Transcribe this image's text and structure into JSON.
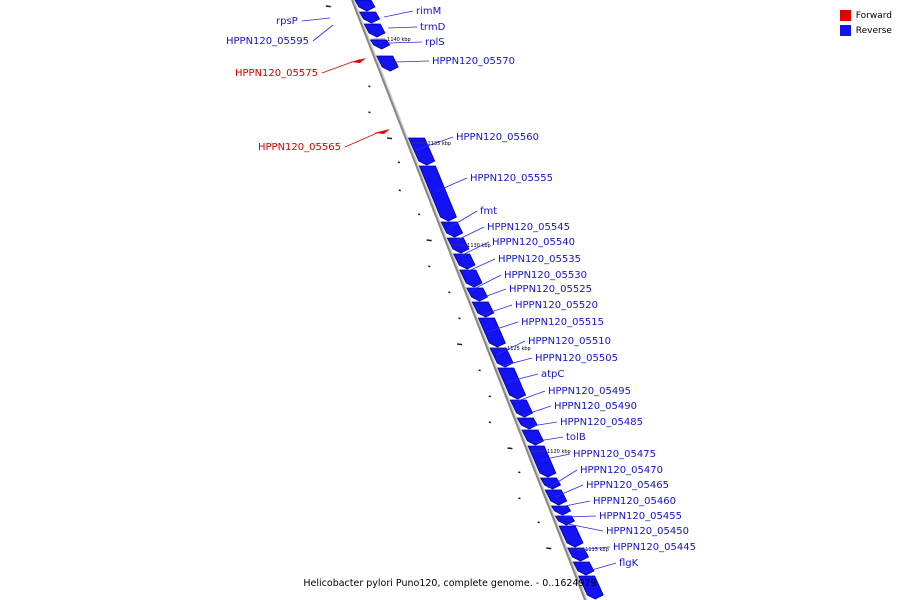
{
  "colors": {
    "forward": "#e40000",
    "reverse": "#1212f2",
    "reverse_dark": "#0000a0",
    "axis": "#888888",
    "leader_reverse": "#2a2af0"
  },
  "legend": {
    "items": [
      {
        "label": "Forward",
        "color": "#e40000"
      },
      {
        "label": "Reverse",
        "color": "#1212f2"
      }
    ]
  },
  "caption": "Helicobacter pylori Puno120, complete genome. - 0..1624979",
  "ticks": [
    {
      "label": "1140 kbp",
      "pos": 1140000
    },
    {
      "label": "1135 kbp",
      "pos": 1135000
    },
    {
      "label": "1130 kbp",
      "pos": 1130000
    },
    {
      "label": "1125 kbp",
      "pos": 1125000
    },
    {
      "label": "1120 kbp",
      "pos": 1120000
    },
    {
      "label": "1115 kbp",
      "pos": 1115000
    }
  ],
  "genes": [
    {
      "label": "rpsP",
      "strand": "forward",
      "label_side": "left",
      "label_color": "reverse"
    },
    {
      "label": "HPPN120_05595",
      "strand": "forward",
      "label_side": "left",
      "label_color": "reverse"
    },
    {
      "label": "HPPN120_05575",
      "strand": "forward",
      "label_side": "left",
      "label_color": "forward"
    },
    {
      "label": "HPPN120_05565",
      "strand": "forward",
      "label_side": "left",
      "label_color": "forward"
    },
    {
      "label": "rimM",
      "strand": "reverse",
      "label_side": "right"
    },
    {
      "label": "trmD",
      "strand": "reverse",
      "label_side": "right"
    },
    {
      "label": "rplS",
      "strand": "reverse",
      "label_side": "right"
    },
    {
      "label": "HPPN120_05570",
      "strand": "reverse",
      "label_side": "right"
    },
    {
      "label": "HPPN120_05560",
      "strand": "reverse",
      "label_side": "right"
    },
    {
      "label": "HPPN120_05555",
      "strand": "reverse",
      "label_side": "right"
    },
    {
      "label": "fmt",
      "strand": "reverse",
      "label_side": "right"
    },
    {
      "label": "HPPN120_05545",
      "strand": "reverse",
      "label_side": "right"
    },
    {
      "label": "HPPN120_05540",
      "strand": "reverse",
      "label_side": "right"
    },
    {
      "label": "HPPN120_05535",
      "strand": "reverse",
      "label_side": "right"
    },
    {
      "label": "HPPN120_05530",
      "strand": "reverse",
      "label_side": "right"
    },
    {
      "label": "HPPN120_05525",
      "strand": "reverse",
      "label_side": "right"
    },
    {
      "label": "HPPN120_05520",
      "strand": "reverse",
      "label_side": "right"
    },
    {
      "label": "HPPN120_05515",
      "strand": "reverse",
      "label_side": "right"
    },
    {
      "label": "HPPN120_05510",
      "strand": "reverse",
      "label_side": "right"
    },
    {
      "label": "HPPN120_05505",
      "strand": "reverse",
      "label_side": "right"
    },
    {
      "label": "atpC",
      "strand": "reverse",
      "label_side": "right"
    },
    {
      "label": "HPPN120_05495",
      "strand": "reverse",
      "label_side": "right"
    },
    {
      "label": "HPPN120_05490",
      "strand": "reverse",
      "label_side": "right"
    },
    {
      "label": "HPPN120_05485",
      "strand": "reverse",
      "label_side": "right"
    },
    {
      "label": "tolB",
      "strand": "reverse",
      "label_side": "right"
    },
    {
      "label": "HPPN120_05475",
      "strand": "reverse",
      "label_side": "right"
    },
    {
      "label": "HPPN120_05470",
      "strand": "reverse",
      "label_side": "right"
    },
    {
      "label": "HPPN120_05465",
      "strand": "reverse",
      "label_side": "right"
    },
    {
      "label": "HPPN120_05460",
      "strand": "reverse",
      "label_side": "right"
    },
    {
      "label": "HPPN120_05455",
      "strand": "reverse",
      "label_side": "right"
    },
    {
      "label": "HPPN120_05450",
      "strand": "reverse",
      "label_side": "right"
    },
    {
      "label": "HPPN120_05445",
      "strand": "reverse",
      "label_side": "right"
    },
    {
      "label": "flgK",
      "strand": "reverse",
      "label_side": "right"
    }
  ]
}
